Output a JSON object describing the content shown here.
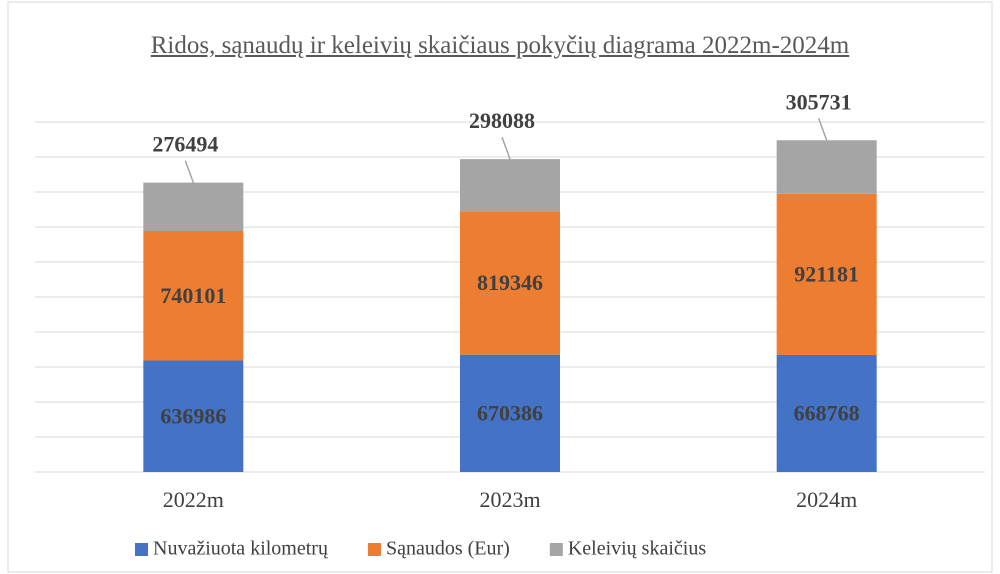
{
  "chart_data": {
    "type": "stacked-bar",
    "title": "Ridos, sąnaudų ir keleivių skaičiaus pokyčių diagrama 2022m-2024m",
    "categories": [
      "2022m",
      "2023m",
      "2024m"
    ],
    "series": [
      {
        "name": "Nuvažiuota kilometrų",
        "color": "#4472c4",
        "values": [
          636986,
          670386,
          668768
        ]
      },
      {
        "name": "Sąnaudos (Eur)",
        "color": "#ed7d31",
        "values": [
          740101,
          819346,
          921181
        ]
      },
      {
        "name": "Keleivių skaičius",
        "color": "#a5a5a5",
        "values": [
          276494,
          298088,
          305731
        ]
      }
    ],
    "ylim": [
      0,
      2000000
    ],
    "yticks": [
      0,
      200000,
      400000,
      600000,
      800000,
      1000000,
      1200000,
      1400000,
      1600000,
      1800000,
      2000000
    ],
    "grid": true,
    "legend": "bottom"
  }
}
